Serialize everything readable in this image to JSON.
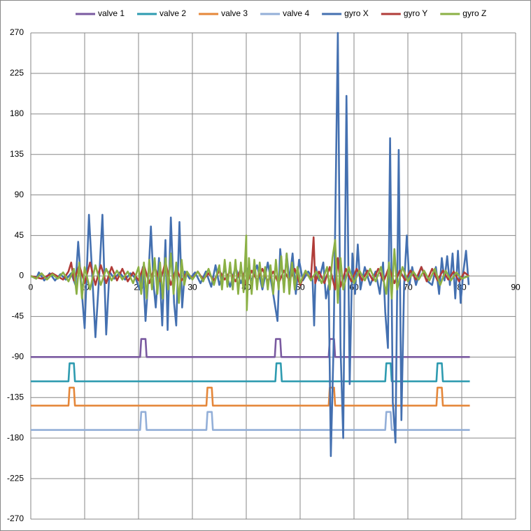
{
  "chart_data": {
    "type": "line",
    "xlim": [
      0,
      90
    ],
    "xticks": [
      0,
      10,
      20,
      30,
      40,
      50,
      60,
      70,
      80,
      90
    ],
    "ylim": [
      -270,
      270
    ],
    "yticks": [
      -270,
      -225,
      -180,
      -135,
      -90,
      -45,
      0,
      45,
      90,
      135,
      180,
      225,
      270
    ],
    "grid": true,
    "legend": "top",
    "series": [
      {
        "name": "valve 1",
        "color": "#7a5aa0",
        "x": [
          0,
          20.3,
          20.5,
          21.3,
          21.5,
          45.3,
          45.5,
          46.3,
          46.5,
          55.3,
          55.5,
          56.3,
          56.5,
          81.5
        ],
        "values": [
          -90,
          -90,
          -70,
          -70,
          -90,
          -90,
          -70,
          -70,
          -90,
          -90,
          -70,
          -70,
          -90,
          -90
        ]
      },
      {
        "name": "valve 2",
        "color": "#2e9bb0",
        "x": [
          0,
          7,
          7.2,
          8,
          8.2,
          45.4,
          45.6,
          46.4,
          46.6,
          65.8,
          66,
          66.8,
          67,
          75.3,
          75.5,
          76.3,
          76.5,
          81.5
        ],
        "values": [
          -117,
          -117,
          -97,
          -97,
          -117,
          -117,
          -97,
          -97,
          -117,
          -117,
          -97,
          -97,
          -117,
          -117,
          -97,
          -97,
          -117,
          -117
        ]
      },
      {
        "name": "valve 3",
        "color": "#e5873a",
        "x": [
          0,
          7,
          7.2,
          8,
          8.2,
          32.6,
          32.8,
          33.6,
          33.8,
          55.3,
          55.5,
          56.3,
          56.5,
          75.3,
          75.5,
          76.3,
          76.5,
          81.5
        ],
        "values": [
          -144,
          -144,
          -124,
          -124,
          -144,
          -144,
          -124,
          -124,
          -144,
          -144,
          -124,
          -124,
          -144,
          -144,
          -124,
          -124,
          -144,
          -144
        ]
      },
      {
        "name": "valve 4",
        "color": "#93afd8",
        "x": [
          0,
          20.3,
          20.5,
          21.3,
          21.5,
          32.6,
          32.8,
          33.6,
          33.8,
          65.8,
          66,
          66.8,
          67,
          81.5
        ],
        "values": [
          -171,
          -171,
          -151,
          -151,
          -171,
          -171,
          -151,
          -151,
          -171,
          -171,
          -151,
          -151,
          -171,
          -171
        ]
      },
      {
        "name": "gyro X",
        "color": "#4470b0",
        "x": [
          0,
          1,
          1.5,
          2.5,
          3.5,
          4.5,
          5.5,
          6.5,
          7.5,
          8.3,
          8.8,
          9.5,
          10,
          10.8,
          11.5,
          12,
          12.8,
          13.3,
          14,
          14.6,
          15.5,
          16.5,
          17.5,
          18.5,
          19.5,
          20.2,
          20.8,
          21.3,
          21.8,
          22.3,
          22.8,
          23.2,
          23.8,
          24.4,
          25,
          25.4,
          26,
          26.6,
          27,
          27.6,
          28.1,
          28.6,
          29.5,
          30.5,
          31.5,
          32.5,
          33.5,
          34.3,
          35,
          36,
          37,
          38,
          39,
          40,
          41,
          42,
          43,
          44,
          45,
          45.8,
          46.3,
          47,
          47.5,
          48,
          48.6,
          49.2,
          49.8,
          50.5,
          51.5,
          52.3,
          52.6,
          52.9,
          53.5,
          54.3,
          54.8,
          55.3,
          55.7,
          56.2,
          57,
          57.5,
          58,
          58.6,
          59.2,
          59.7,
          60.2,
          60.7,
          61.2,
          62,
          63,
          64,
          64.8,
          65.4,
          65.8,
          66.3,
          66.7,
          67.2,
          67.7,
          68.3,
          68.8,
          69.3,
          69.8,
          70.3,
          70.8,
          71.5,
          72.5,
          73.5,
          74.5,
          75.2,
          75.8,
          76.3,
          76.8,
          77.3,
          77.8,
          78.3,
          78.8,
          79.3,
          79.8,
          80.3,
          80.8,
          81.3
        ],
        "values": [
          0,
          -3,
          4,
          -5,
          3,
          -5,
          2,
          -4,
          3,
          -10,
          38,
          -20,
          -58,
          68,
          -10,
          -68,
          10,
          68,
          -65,
          5,
          -3,
          4,
          -4,
          3,
          -3,
          -15,
          10,
          -50,
          -5,
          55,
          -10,
          -35,
          20,
          -55,
          40,
          -60,
          65,
          -30,
          -55,
          60,
          -35,
          5,
          -3,
          4,
          -8,
          5,
          -12,
          12,
          -10,
          8,
          -12,
          10,
          -8,
          10,
          -5,
          12,
          -15,
          15,
          -20,
          -50,
          30,
          -15,
          25,
          -5,
          25,
          -20,
          18,
          -5,
          5,
          -2,
          -55,
          10,
          -5,
          15,
          -25,
          -10,
          -200,
          -80,
          270,
          -80,
          -180,
          200,
          -120,
          25,
          -20,
          35,
          -15,
          10,
          -10,
          5,
          -20,
          15,
          -40,
          -80,
          153,
          -140,
          -185,
          140,
          -160,
          -10,
          45,
          -10,
          10,
          -10,
          10,
          -5,
          -10,
          10,
          -20,
          20,
          -5,
          22,
          -10,
          25,
          -25,
          28,
          -30,
          5,
          28,
          -10
        ]
      },
      {
        "name": "gyro Y",
        "color": "#b03c38",
        "x": [
          0,
          2,
          4,
          6,
          7,
          7.5,
          8,
          9,
          10,
          11,
          12,
          13,
          14,
          15,
          16,
          17,
          18,
          19,
          20,
          21,
          22,
          23,
          24,
          25,
          26,
          27,
          28,
          29,
          30,
          31,
          32,
          33,
          34,
          35,
          36,
          37,
          38,
          39,
          40,
          41,
          42,
          43,
          44,
          45,
          46,
          47,
          48,
          49,
          50,
          51,
          52,
          52.5,
          52.8,
          53.5,
          54.5,
          55.5,
          56.5,
          57,
          57.5,
          58.5,
          59.5,
          60.5,
          61.5,
          62.5,
          63.5,
          64.5,
          65.5,
          66.5,
          67.5,
          68.5,
          69.5,
          70.5,
          71.5,
          72.5,
          73.5,
          74.5,
          75.5,
          76.5,
          77.5,
          78.5,
          79.5,
          80.5,
          81.3
        ],
        "values": [
          0,
          -3,
          3,
          -4,
          5,
          15,
          -5,
          12,
          -8,
          15,
          -10,
          12,
          -8,
          10,
          -5,
          8,
          -6,
          4,
          -5,
          12,
          -8,
          10,
          -6,
          15,
          -10,
          8,
          -5,
          4,
          -3,
          5,
          -4,
          3,
          -5,
          6,
          -4,
          5,
          -6,
          8,
          -10,
          6,
          -5,
          8,
          -6,
          5,
          -8,
          6,
          -5,
          8,
          -10,
          5,
          -3,
          43,
          -8,
          5,
          -8,
          10,
          -15,
          20,
          -12,
          8,
          -6,
          8,
          -5,
          6,
          -5,
          8,
          -6,
          10,
          -8,
          6,
          -5,
          6,
          -4,
          10,
          -6,
          8,
          -5,
          6,
          -4,
          5,
          -6,
          4,
          0
        ]
      },
      {
        "name": "gyro Z",
        "color": "#8bb045",
        "x": [
          0,
          1,
          2,
          3,
          4,
          5,
          6,
          7,
          8,
          8.5,
          9,
          9.5,
          10,
          11,
          12,
          13,
          14,
          15,
          16,
          17,
          18,
          19,
          20,
          20.5,
          21,
          21.5,
          22,
          22.5,
          23,
          23.5,
          24,
          24.5,
          25,
          25.5,
          26,
          26.5,
          27,
          27.5,
          28,
          28.5,
          29,
          30,
          31,
          32,
          33,
          34,
          35,
          35.5,
          36,
          36.5,
          37,
          37.5,
          38,
          38.5,
          39,
          39.5,
          40,
          40.1,
          40.5,
          41,
          41.5,
          42,
          42.5,
          43,
          43.5,
          44,
          44.5,
          45,
          45.5,
          46,
          46.5,
          47,
          47.5,
          48,
          48.5,
          49,
          49.5,
          50,
          51,
          52,
          53,
          54,
          55,
          55.5,
          56,
          56.5,
          57,
          57.5,
          58,
          59,
          60,
          61,
          62,
          63,
          64,
          65,
          66,
          66.5,
          67,
          67.5,
          68,
          69,
          70,
          71,
          72,
          73,
          74,
          75,
          76,
          77,
          78,
          79,
          80,
          81.3
        ],
        "values": [
          0,
          -3,
          3,
          -4,
          2,
          -3,
          4,
          -6,
          8,
          -20,
          15,
          -25,
          10,
          -15,
          12,
          -10,
          8,
          -5,
          6,
          -4,
          5,
          -8,
          10,
          -20,
          15,
          -25,
          18,
          -15,
          20,
          -20,
          15,
          -25,
          20,
          -15,
          25,
          -20,
          15,
          -30,
          18,
          -10,
          5,
          -4,
          5,
          -6,
          8,
          -10,
          12,
          -15,
          18,
          -12,
          15,
          -15,
          18,
          -20,
          15,
          -18,
          45,
          -38,
          20,
          -20,
          18,
          -15,
          15,
          -12,
          10,
          -15,
          12,
          -20,
          18,
          -15,
          22,
          -18,
          25,
          -20,
          15,
          -15,
          10,
          -8,
          6,
          -5,
          5,
          -8,
          10,
          -15,
          20,
          40,
          -30,
          20,
          -15,
          10,
          -8,
          6,
          -5,
          8,
          -6,
          10,
          -20,
          15,
          -25,
          30,
          -15,
          10,
          -6,
          5,
          -4,
          6,
          -5,
          8,
          -10,
          6,
          -5,
          4,
          -3,
          0
        ]
      }
    ]
  }
}
